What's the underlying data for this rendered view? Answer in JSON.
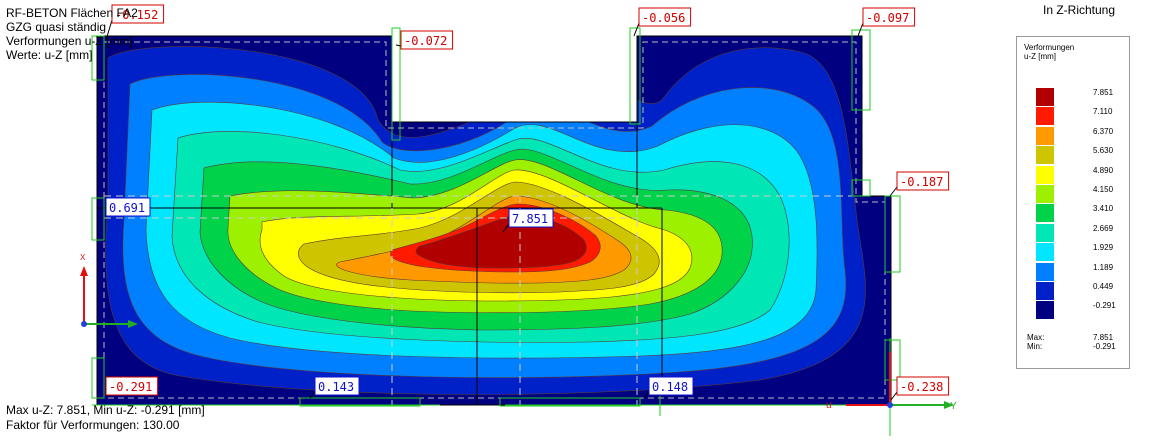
{
  "header": {
    "line1": "RF-BETON Flächen FA2",
    "line2": "GZG quasi ständig",
    "line3": "Verformungen u-Z [mm]",
    "line4": "Werte: u-Z [mm]"
  },
  "direction_label": "In Z-Richtung",
  "footer": {
    "line1": "Max u-Z: 7.851, Min u-Z: -0.291 [mm]",
    "line2": "Faktor für Verformungen: 130.00"
  },
  "legend": {
    "title_line1": "Verformungen",
    "title_line2": "u-Z [mm]",
    "levels": [
      {
        "value": "7.851",
        "color": "#b00000"
      },
      {
        "value": "7.110",
        "color": "#ff1a00"
      },
      {
        "value": "6.370",
        "color": "#ff9900"
      },
      {
        "value": "5.630",
        "color": "#cfc400"
      },
      {
        "value": "4.890",
        "color": "#ffff00"
      },
      {
        "value": "4.150",
        "color": "#9cf000"
      },
      {
        "value": "3.410",
        "color": "#00d24a"
      },
      {
        "value": "2.669",
        "color": "#00e6b4"
      },
      {
        "value": "1.929",
        "color": "#00e6ff"
      },
      {
        "value": "1.189",
        "color": "#0080ff"
      },
      {
        "value": "0.449",
        "color": "#0020c8"
      },
      {
        "value": "-0.291",
        "color": "#000080"
      }
    ],
    "max_label": "Max:",
    "min_label": "Min:",
    "max_value": "7.851",
    "min_value": "-0.291"
  },
  "axes": {
    "x_label": "X",
    "y_label": "Y",
    "u_label": "u"
  },
  "chart_data": {
    "type": "heatmap",
    "quantity": "u-Z [mm]",
    "max": 7.851,
    "min": -0.291,
    "contour_levels": [
      7.851,
      7.11,
      6.37,
      5.63,
      4.89,
      4.15,
      3.41,
      2.669,
      1.929,
      1.189,
      0.449,
      -0.291
    ],
    "value_labels": [
      {
        "text": "-0.152",
        "type": "min"
      },
      {
        "text": "-0.072",
        "type": "min"
      },
      {
        "text": "-0.056",
        "type": "min"
      },
      {
        "text": "-0.097",
        "type": "min"
      },
      {
        "text": "0.691",
        "type": "max"
      },
      {
        "text": "7.851",
        "type": "max"
      },
      {
        "text": "-0.187",
        "type": "min"
      },
      {
        "text": "-0.291",
        "type": "min"
      },
      {
        "text": "0.143",
        "type": "max"
      },
      {
        "text": "0.148",
        "type": "max"
      },
      {
        "text": "-0.238",
        "type": "min"
      }
    ]
  }
}
